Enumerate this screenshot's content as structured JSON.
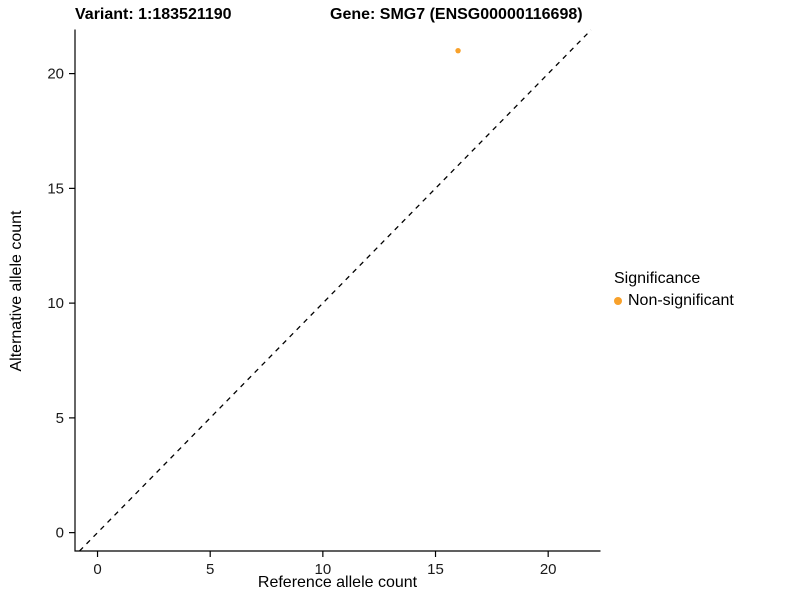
{
  "chart_data": {
    "type": "scatter",
    "title_left": "Variant: 1:183521190",
    "title_right": "Gene: SMG7 (ENSG00000116698)",
    "xlabel": "Reference allele count",
    "ylabel": "Alternative allele count",
    "xlim": [
      -1,
      22.3
    ],
    "ylim": [
      -0.8,
      21.9
    ],
    "xticks": [
      0,
      5,
      10,
      15,
      20
    ],
    "yticks": [
      0,
      5,
      10,
      15,
      20
    ],
    "grid": false,
    "points": [
      {
        "x": 16,
        "y": 21,
        "series": "Non-significant"
      }
    ],
    "identity_line": {
      "style": "dashed",
      "equation": "y = x",
      "color": "#000000"
    },
    "point_color": "#F8A12B",
    "legend": {
      "position": "right",
      "title": "Significance",
      "items": [
        {
          "label": "Non-significant",
          "color": "#F8A12B"
        }
      ]
    }
  }
}
